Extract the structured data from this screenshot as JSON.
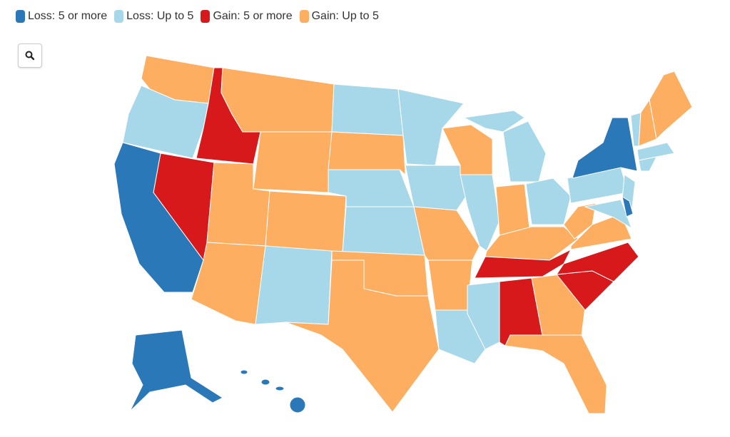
{
  "legend": [
    {
      "name": "Loss: 5 or more",
      "color": "#2b78b8"
    },
    {
      "name": "Loss: Up to 5",
      "color": "#a7d8ea"
    },
    {
      "name": "Gain: 5 or more",
      "color": "#d7191c"
    },
    {
      "name": "Gain: Up to 5",
      "color": "#fdae61"
    }
  ]
}
